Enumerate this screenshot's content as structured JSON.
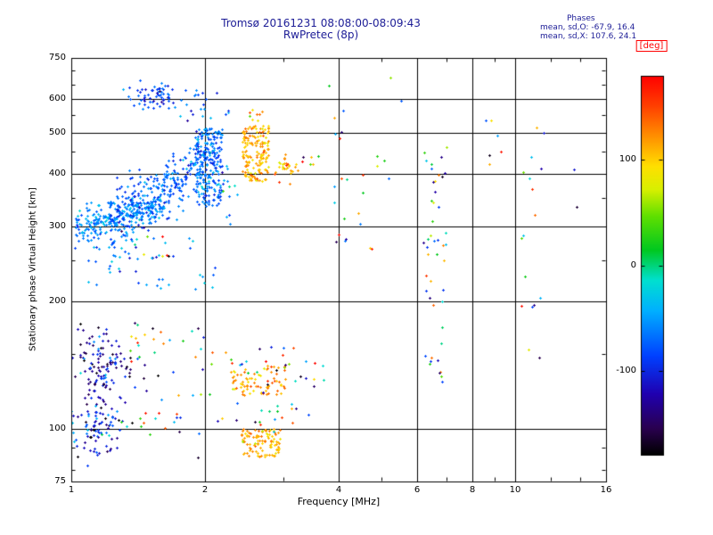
{
  "colors": {
    "title_text": "#1c1c96",
    "stats_text": "#1c1c96",
    "deg_label": "#ff0000",
    "axis": "#000000",
    "background": "#ffffff"
  },
  "chart_data": {
    "type": "scatter",
    "title": "Tromsø 20161231 08:08:00-08:09:43",
    "subtitle": "RwPretec (8p)",
    "stats": {
      "header": "Phases",
      "o_line": "mean, sd,O: -67.9, 16.4",
      "x_line": "mean, sd,X: 107.6, 24.1"
    },
    "xlabel": "Frequency [MHz]",
    "ylabel": "Stationary phase Virtual Height [km]",
    "x_scale": "log",
    "y_scale": "log",
    "xlim": [
      1,
      16
    ],
    "ylim": [
      75,
      750
    ],
    "x_ticks": [
      1,
      2,
      4,
      6,
      8,
      10,
      16
    ],
    "y_ticks": [
      75,
      100,
      200,
      300,
      400,
      500,
      600,
      750
    ],
    "x_minor_ticks": [
      3,
      5,
      7,
      9,
      12,
      14
    ],
    "y_minor_ticks": [
      80,
      90,
      150,
      250,
      350,
      450,
      550,
      650,
      700
    ],
    "x_gridlines": [
      2,
      4,
      6,
      8,
      10
    ],
    "y_gridlines": [
      100,
      200,
      300,
      400,
      500,
      600
    ],
    "grid": true,
    "legend_position": "none",
    "marker": "plus",
    "colorbar": {
      "label": "[deg]",
      "min": -180,
      "max": 180,
      "ticks": [
        100,
        0,
        -100
      ],
      "stops": [
        [
          0.0,
          "#000000"
        ],
        [
          0.07,
          "#2a0050"
        ],
        [
          0.16,
          "#2000b0"
        ],
        [
          0.26,
          "#0040ff"
        ],
        [
          0.38,
          "#00b0ff"
        ],
        [
          0.46,
          "#00e0d0"
        ],
        [
          0.54,
          "#00c820"
        ],
        [
          0.63,
          "#60e000"
        ],
        [
          0.7,
          "#d8f000"
        ],
        [
          0.76,
          "#ffe000"
        ],
        [
          0.84,
          "#ff9000"
        ],
        [
          0.92,
          "#ff4000"
        ],
        [
          1.0,
          "#ff0000"
        ]
      ]
    },
    "clusters": [
      {
        "name": "o-trace-left",
        "mode": "trail",
        "f": [
          1.02,
          1.6
        ],
        "h": [
          298,
          335
        ],
        "hsd": 16,
        "count": 260,
        "phase": -55,
        "psd": 18
      },
      {
        "name": "o-trace-rise",
        "mode": "trail",
        "f": [
          1.22,
          2.02
        ],
        "h": [
          305,
          425
        ],
        "hsd": 28,
        "count": 300,
        "phase": -72,
        "psd": 18
      },
      {
        "name": "o-band-2mhz",
        "mode": "uniform",
        "f": [
          1.9,
          2.18
        ],
        "h": [
          335,
          515
        ],
        "count": 230,
        "phase": -65,
        "psd": 20
      },
      {
        "name": "o-upper-cloud",
        "mode": "gauss",
        "f": [
          1.35,
          1.85
        ],
        "h": [
          555,
          660
        ],
        "count": 70,
        "phase": -85,
        "psd": 18
      },
      {
        "name": "o-below-sparse",
        "mode": "uniform",
        "f": [
          1.08,
          2.1
        ],
        "h": [
          212,
          292
        ],
        "count": 45,
        "phase": -62,
        "psd": 30
      },
      {
        "name": "warm-left-sparse",
        "mode": "uniform",
        "f": [
          1.25,
          1.75
        ],
        "h": [
          252,
          300
        ],
        "count": 10,
        "phase_mode": "uniform"
      },
      {
        "name": "blue-above-band",
        "mode": "uniform",
        "f": [
          1.85,
          2.3
        ],
        "h": [
          540,
          625
        ],
        "count": 14,
        "phase": -80,
        "psd": 30
      },
      {
        "name": "gap-2.2-2.4",
        "mode": "uniform",
        "f": [
          2.18,
          2.4
        ],
        "h": [
          300,
          430
        ],
        "count": 15,
        "phase": -55,
        "psd": 35
      },
      {
        "name": "x-band",
        "mode": "uniform",
        "f": [
          2.42,
          2.78
        ],
        "h": [
          385,
          520
        ],
        "count": 160,
        "phase": 110,
        "psd": 16
      },
      {
        "name": "x-right",
        "mode": "gauss",
        "f": [
          2.85,
          3.25
        ],
        "h": [
          388,
          448
        ],
        "count": 30,
        "phase": 115,
        "psd": 25
      },
      {
        "name": "x-top-few",
        "mode": "uniform",
        "f": [
          2.48,
          2.72
        ],
        "h": [
          528,
          570
        ],
        "count": 8,
        "phase": 100,
        "psd": 30
      },
      {
        "name": "mid-3.5",
        "mode": "uniform",
        "f": [
          3.3,
          3.65
        ],
        "h": [
          415,
          445
        ],
        "count": 6,
        "phase_mode": "uniform"
      },
      {
        "name": "col-4mhz",
        "mode": "uniform",
        "f": [
          3.9,
          4.18
        ],
        "h": [
          245,
          615
        ],
        "count": 14,
        "phase_mode": "uniform"
      },
      {
        "name": "col-4.8",
        "mode": "uniform",
        "f": [
          4.4,
          5.2
        ],
        "h": [
          255,
          440
        ],
        "count": 10,
        "phase_mode": "uniform"
      },
      {
        "name": "col-6.5",
        "mode": "uniform",
        "f": [
          6.2,
          7.0
        ],
        "h": [
          130,
          510
        ],
        "count": 40,
        "phase_mode": "uniform"
      },
      {
        "name": "col-8.5",
        "mode": "uniform",
        "f": [
          8.1,
          9.3
        ],
        "h": [
          400,
          545
        ],
        "count": 6,
        "phase_mode": "uniform"
      },
      {
        "name": "col-11",
        "mode": "uniform",
        "f": [
          10.3,
          11.6
        ],
        "h": [
          130,
          525
        ],
        "count": 16,
        "phase_mode": "uniform"
      },
      {
        "name": "e-dark-cluster",
        "mode": "gauss",
        "f": [
          1.0,
          1.38
        ],
        "h": [
          112,
          170
        ],
        "count": 130,
        "phase": -120,
        "psd": 35
      },
      {
        "name": "e-low-cluster",
        "mode": "gauss",
        "f": [
          1.0,
          1.3
        ],
        "h": [
          86,
          114
        ],
        "count": 90,
        "phase": -100,
        "psd": 45
      },
      {
        "name": "e-mid-sparse",
        "mode": "uniform",
        "f": [
          1.35,
          2.05
        ],
        "h": [
          95,
          178
        ],
        "count": 45,
        "phase_mode": "uniform"
      },
      {
        "name": "e-x-130km",
        "mode": "uniform",
        "f": [
          2.3,
          3.05
        ],
        "h": [
          120,
          142
        ],
        "count": 80,
        "phase": 115,
        "psd": 22
      },
      {
        "name": "e-x-92km",
        "mode": "uniform",
        "f": [
          2.42,
          2.98
        ],
        "h": [
          86,
          100
        ],
        "count": 100,
        "phase": 112,
        "psd": 16
      },
      {
        "name": "e-green-scatter",
        "mode": "uniform",
        "f": [
          2.05,
          3.3
        ],
        "h": [
          98,
          158
        ],
        "count": 45,
        "phase_mode": "uniform"
      },
      {
        "name": "e-3.5",
        "mode": "uniform",
        "f": [
          3.3,
          3.7
        ],
        "h": [
          95,
          145
        ],
        "count": 8,
        "phase_mode": "uniform"
      },
      {
        "name": "e-6.5",
        "mode": "uniform",
        "f": [
          6.4,
          6.9
        ],
        "h": [
          128,
          168
        ],
        "count": 6,
        "phase_mode": "uniform"
      },
      {
        "name": "outliers",
        "mode": "uniform",
        "f": [
          1.05,
          15.0
        ],
        "h": [
          80,
          700
        ],
        "count": 8,
        "phase_mode": "uniform"
      }
    ]
  }
}
